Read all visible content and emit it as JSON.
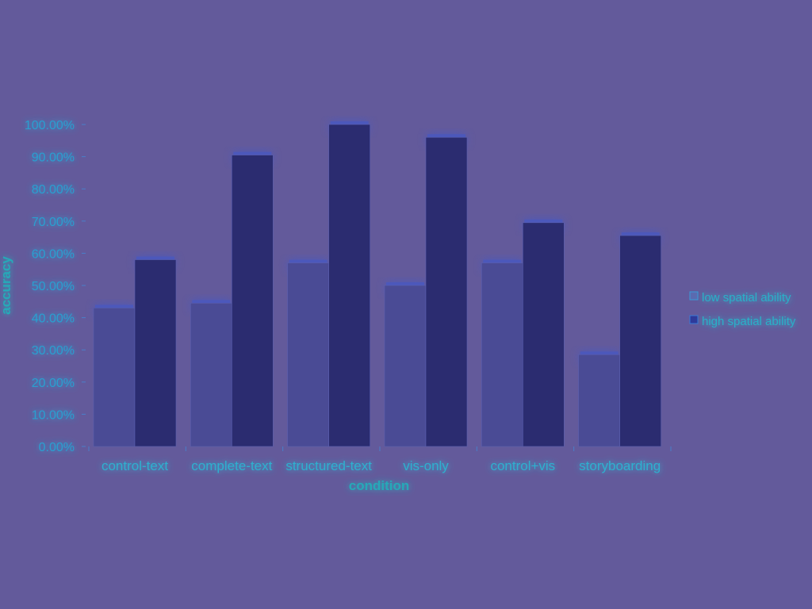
{
  "chart_data": {
    "type": "bar",
    "xlabel": "condition",
    "ylabel": "accuracy",
    "ylim": [
      0,
      100
    ],
    "ytick_step": 10,
    "ytick_labels": [
      "0.00%",
      "10.00%",
      "20.00%",
      "30.00%",
      "40.00%",
      "50.00%",
      "60.00%",
      "70.00%",
      "80.00%",
      "90.00%",
      "100.00%"
    ],
    "categories": [
      "control-text",
      "complete-text",
      "structured-text",
      "vis-only",
      "control+vis",
      "storyboarding"
    ],
    "series": [
      {
        "name": "low spatial ability",
        "values": [
          43,
          44.5,
          57,
          50,
          57,
          28.5
        ],
        "color": "#4a4b95"
      },
      {
        "name": "high spatial ability",
        "values": [
          58,
          90.5,
          100,
          96,
          69.5,
          65.5
        ],
        "color": "#2b2c70"
      }
    ],
    "legend_position": "right",
    "grid": false
  }
}
